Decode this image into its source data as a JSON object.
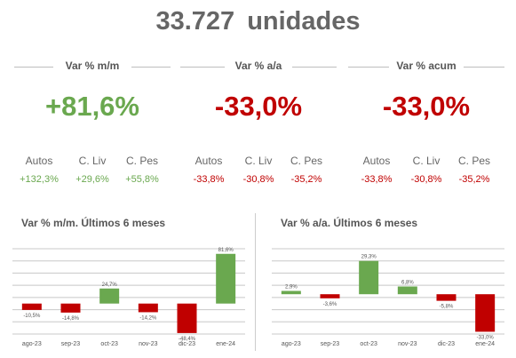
{
  "header": {
    "value": "33.727",
    "unit": "unidades"
  },
  "kpis": [
    {
      "label": "Var % m/m",
      "value": "+81,6%",
      "tone": "pos",
      "breakdown": [
        {
          "name": "Autos",
          "value": "+132,3%"
        },
        {
          "name": "C. Liv",
          "value": "+29,6%"
        },
        {
          "name": "C. Pes",
          "value": "+55,8%"
        }
      ]
    },
    {
      "label": "Var % a/a",
      "value": "-33,0%",
      "tone": "neg",
      "breakdown": [
        {
          "name": "Autos",
          "value": "-33,8%"
        },
        {
          "name": "C. Liv",
          "value": "-30,8%"
        },
        {
          "name": "C. Pes",
          "value": "-35,2%"
        }
      ]
    },
    {
      "label": "Var % acum",
      "value": "-33,0%",
      "tone": "neg",
      "breakdown": [
        {
          "name": "Autos",
          "value": "-33,8%"
        },
        {
          "name": "C. Liv",
          "value": "-30,8%"
        },
        {
          "name": "C. Pes",
          "value": "-35,2%"
        }
      ]
    }
  ],
  "colors": {
    "positive": "#6aa84f",
    "negative": "#c00000",
    "grid": "#c8c8c8"
  },
  "chart_data": [
    {
      "type": "bar",
      "title": "Var % m/m. Últimos 6 meses",
      "categories": [
        "ago-23",
        "sep-23",
        "oct-23",
        "nov-23",
        "dic-23",
        "ene-24"
      ],
      "values": [
        -10.5,
        -14.8,
        24.7,
        -14.2,
        -48.4,
        81.6
      ],
      "labels": [
        "-10,5%",
        "-14,8%",
        "24,7%",
        "-14,2%",
        "-48,4%",
        "81,6%"
      ],
      "ylim": [
        -50,
        90
      ],
      "grid": true
    },
    {
      "type": "bar",
      "title": "Var % a/a. Últimos 6 meses",
      "categories": [
        "ago-23",
        "sep-23",
        "oct-23",
        "nov-23",
        "dic-23",
        "ene-24"
      ],
      "values": [
        2.9,
        -3.6,
        29.3,
        6.8,
        -5.8,
        -33.0
      ],
      "labels": [
        "2,9%",
        "-3,6%",
        "29,3%",
        "6,8%",
        "-5,8%",
        "-33,0%"
      ],
      "ylim": [
        -35,
        40
      ],
      "grid": true
    }
  ]
}
